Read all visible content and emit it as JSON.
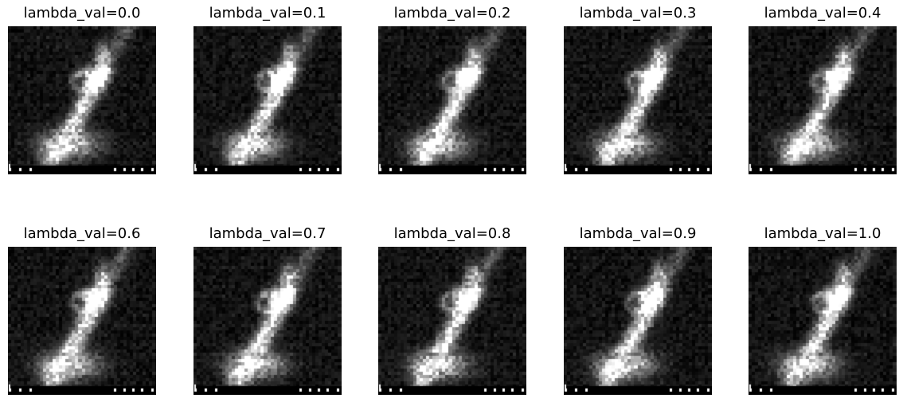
{
  "figure": {
    "panels": [
      {
        "title": "lambda_val=0.0",
        "lambda": 0.0
      },
      {
        "title": "lambda_val=0.1",
        "lambda": 0.1
      },
      {
        "title": "lambda_val=0.2",
        "lambda": 0.2
      },
      {
        "title": "lambda_val=0.3",
        "lambda": 0.3
      },
      {
        "title": "lambda_val=0.4",
        "lambda": 0.4
      },
      {
        "title": "lambda_val=0.6",
        "lambda": 0.6
      },
      {
        "title": "lambda_val=0.7",
        "lambda": 0.7
      },
      {
        "title": "lambda_val=0.8",
        "lambda": 0.8
      },
      {
        "title": "lambda_val=0.9",
        "lambda": 0.9
      },
      {
        "title": "lambda_val=1.0",
        "lambda": 1.0
      }
    ],
    "image_description": "grayscale generated image of a bright bird-like shape on a dark background",
    "colors": {
      "background": "#000000",
      "foreground": "#ffffff"
    }
  }
}
